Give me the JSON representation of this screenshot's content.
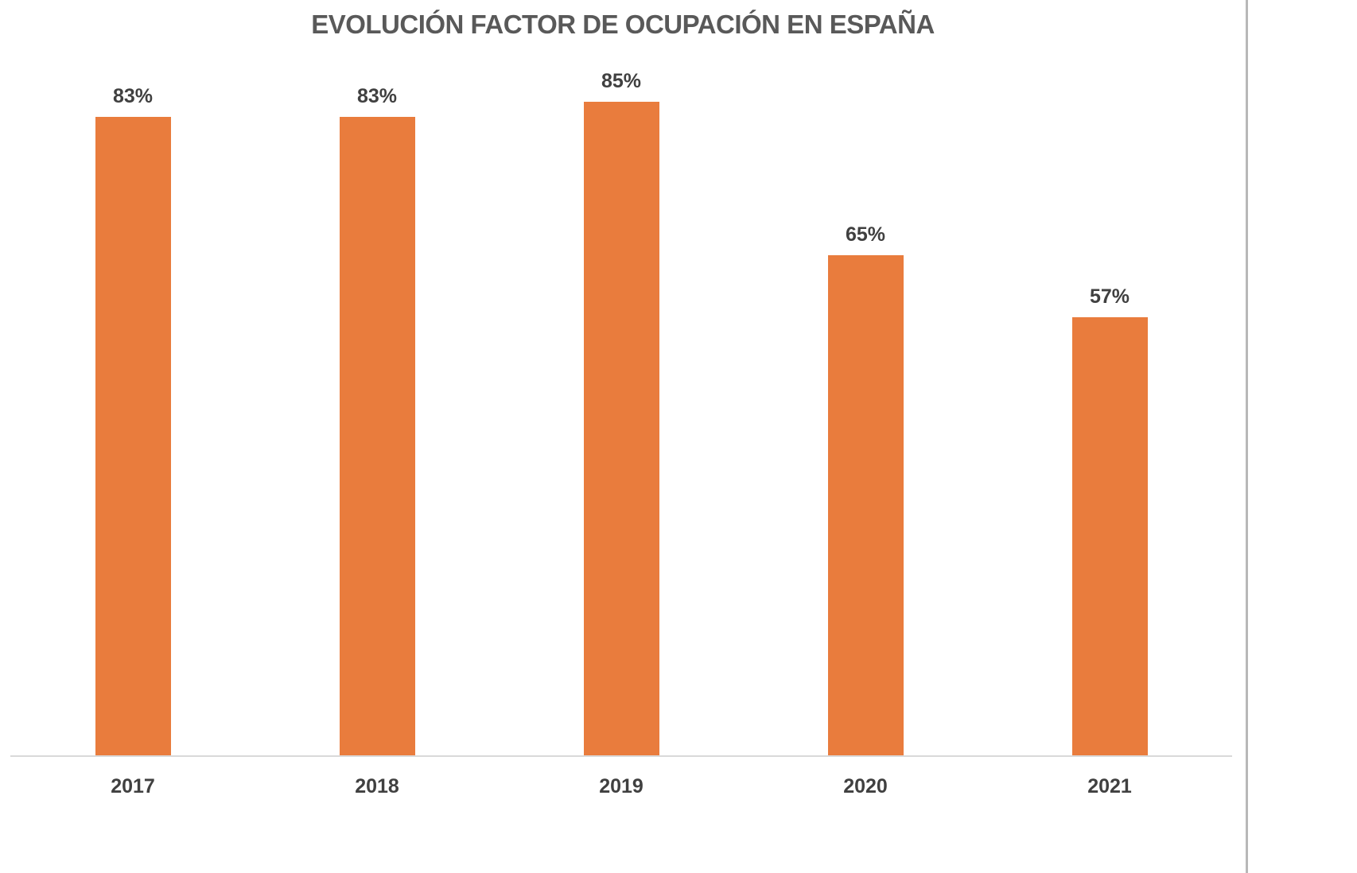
{
  "chart_data": {
    "type": "bar",
    "title": "EVOLUCIÓN FACTOR DE OCUPACIÓN EN ESPAÑA",
    "xlabel": "",
    "ylabel": "",
    "categories": [
      "2017",
      "2018",
      "2019",
      "2020",
      "2021"
    ],
    "values": [
      83,
      83,
      85,
      65,
      57
    ],
    "value_labels": [
      "83%",
      "83%",
      "85%",
      "65%",
      "57%"
    ],
    "unit": "%",
    "ylim": [
      0,
      100
    ],
    "grid": false,
    "legend": null,
    "bar_color": "#e97c3d"
  }
}
